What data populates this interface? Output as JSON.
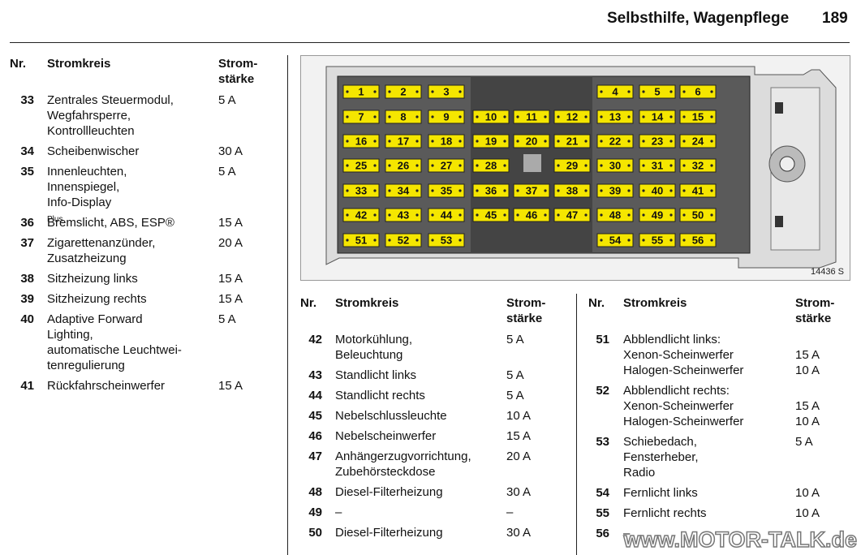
{
  "header": {
    "title": "Selbsthilfe, Wagenpflege",
    "page": "189"
  },
  "table_header": {
    "nr": "Nr.",
    "circuit": "Stromkreis",
    "rating": [
      "Strom-",
      "stärke"
    ]
  },
  "tables": [
    {
      "rows": [
        {
          "nr": "33",
          "lines": [
            {
              "text": "Zentrales Steuermodul,",
              "amp": "5 A"
            },
            {
              "text": "Wegfahrsperre,"
            },
            {
              "text": "Kontrollleuchten"
            }
          ]
        },
        {
          "nr": "34",
          "lines": [
            {
              "text": "Scheibenwischer",
              "amp": "30 A"
            }
          ]
        },
        {
          "nr": "35",
          "lines": [
            {
              "text": "Innenleuchten,",
              "amp": "5 A"
            },
            {
              "text": "Innenspiegel,"
            },
            {
              "text": "Info-Display"
            }
          ]
        },
        {
          "nr": "36",
          "lines": [
            {
              "text": "Bremslicht, ABS, ESP®",
              "sup": "Plus",
              "amp": "15 A"
            }
          ]
        },
        {
          "nr": "37",
          "lines": [
            {
              "text": "Zigarettenanzünder,",
              "amp": "20 A"
            },
            {
              "text": "Zusatzheizung"
            }
          ]
        },
        {
          "nr": "38",
          "lines": [
            {
              "text": "Sitzheizung links",
              "amp": "15 A"
            }
          ]
        },
        {
          "nr": "39",
          "lines": [
            {
              "text": "Sitzheizung rechts",
              "amp": "15 A"
            }
          ]
        },
        {
          "nr": "40",
          "lines": [
            {
              "text": "Adaptive Forward",
              "amp": "5 A"
            },
            {
              "text": "Lighting,"
            },
            {
              "text": "automatische Leuchtwei-"
            },
            {
              "text": "tenregulierung"
            }
          ]
        },
        {
          "nr": "41",
          "lines": [
            {
              "text": "Rückfahrscheinwerfer",
              "amp": "15 A"
            }
          ]
        }
      ]
    },
    {
      "rows": [
        {
          "nr": "42",
          "lines": [
            {
              "text": "Motorkühlung,",
              "amp": "5 A"
            },
            {
              "text": "Beleuchtung"
            }
          ]
        },
        {
          "nr": "43",
          "lines": [
            {
              "text": "Standlicht links",
              "amp": "5 A"
            }
          ]
        },
        {
          "nr": "44",
          "lines": [
            {
              "text": "Standlicht rechts",
              "amp": "5 A"
            }
          ]
        },
        {
          "nr": "45",
          "lines": [
            {
              "text": "Nebelschlussleuchte",
              "amp": "10 A"
            }
          ]
        },
        {
          "nr": "46",
          "lines": [
            {
              "text": "Nebelscheinwerfer",
              "amp": "15 A"
            }
          ]
        },
        {
          "nr": "47",
          "lines": [
            {
              "text": "Anhängerzugvorrichtung,",
              "amp": "20 A"
            },
            {
              "text": "Zubehörsteckdose"
            }
          ]
        },
        {
          "nr": "48",
          "lines": [
            {
              "text": "Diesel-Filterheizung",
              "amp": "30 A"
            }
          ]
        },
        {
          "nr": "49",
          "lines": [
            {
              "text": "–",
              "amp": "–"
            }
          ]
        },
        {
          "nr": "50",
          "lines": [
            {
              "text": "Diesel-Filterheizung",
              "amp": "30 A"
            }
          ]
        }
      ]
    },
    {
      "rows": [
        {
          "nr": "51",
          "lines": [
            {
              "text": "Abblendlicht links:"
            },
            {
              "text": "Xenon-Scheinwerfer",
              "amp": "15 A"
            },
            {
              "text": "Halogen-Scheinwerfer",
              "amp": "10 A"
            }
          ]
        },
        {
          "nr": "52",
          "lines": [
            {
              "text": "Abblendlicht rechts:"
            },
            {
              "text": "Xenon-Scheinwerfer",
              "amp": "15 A"
            },
            {
              "text": "Halogen-Scheinwerfer",
              "amp": "10 A"
            }
          ]
        },
        {
          "nr": "53",
          "lines": [
            {
              "text": "Schiebedach,",
              "amp": "5 A"
            },
            {
              "text": "Fensterheber,"
            },
            {
              "text": "Radio"
            }
          ]
        },
        {
          "nr": "54",
          "lines": [
            {
              "text": "Fernlicht links",
              "amp": "10 A"
            }
          ]
        },
        {
          "nr": "55",
          "lines": [
            {
              "text": "Fernlicht rechts",
              "amp": "10 A"
            }
          ]
        },
        {
          "nr": "56",
          "lines": [
            {
              "text": "–"
            }
          ]
        }
      ]
    }
  ],
  "diagram": {
    "fuse_rows": [
      [
        "1",
        "2",
        "3",
        null,
        null,
        null,
        "4",
        "5",
        "6"
      ],
      [
        "7",
        "8",
        "9",
        "10",
        "11",
        "12",
        "13",
        "14",
        "15"
      ],
      [
        "16",
        "17",
        "18",
        "19",
        "20",
        "21",
        "22",
        "23",
        "24"
      ],
      [
        "25",
        "26",
        "27",
        "28",
        null,
        "29",
        "30",
        "31",
        "32"
      ],
      [
        "33",
        "34",
        "35",
        "36",
        "37",
        "38",
        "39",
        "40",
        "41"
      ],
      [
        "42",
        "43",
        "44",
        "45",
        "46",
        "47",
        "48",
        "49",
        "50"
      ],
      [
        "51",
        "52",
        "53",
        null,
        null,
        null,
        "54",
        "55",
        "56"
      ]
    ],
    "code": "14436 S"
  },
  "watermark": "www.MOTOR-TALK.de"
}
